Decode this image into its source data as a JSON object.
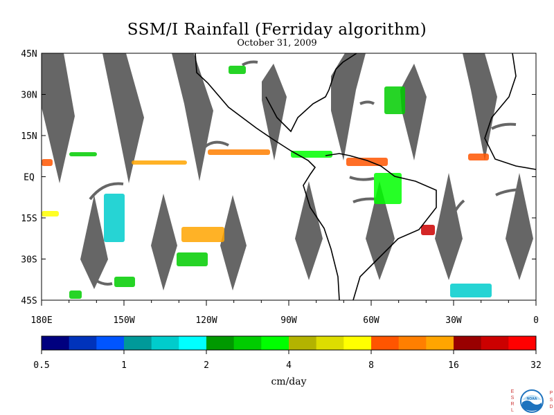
{
  "title": "SSM/I Rainfall (Ferriday algorithm)",
  "date": "October 31, 2009",
  "map": {
    "lat_labels": [
      "45N",
      "30N",
      "15N",
      "EQ",
      "15S",
      "30S",
      "45S"
    ],
    "lat_values": [
      45,
      30,
      15,
      0,
      -15,
      -30,
      -45
    ],
    "lon_labels": [
      "180E",
      "150W",
      "120W",
      "90W",
      "60W",
      "30W",
      "0"
    ],
    "lon_values": [
      -180,
      -150,
      -120,
      -90,
      -60,
      -30,
      0
    ],
    "lon_range": [
      -180,
      0
    ],
    "lat_range": [
      -45,
      45
    ],
    "swath_gap_color": "#666666",
    "land_outline_color": "#000000"
  },
  "colorbar": {
    "units": "cm/day",
    "tick_labels": [
      "0.5",
      "1",
      "2",
      "4",
      "8",
      "16",
      "32"
    ],
    "colors": [
      "#00007f",
      "#0033bb",
      "#0055ff",
      "#009999",
      "#00cccc",
      "#00ffff",
      "#009900",
      "#00cc00",
      "#00ff00",
      "#b3b300",
      "#dddd00",
      "#ffff00",
      "#ff5500",
      "#ff7f00",
      "#ffa500",
      "#990000",
      "#cc0000",
      "#ff0000"
    ]
  },
  "logo": {
    "left_letters": "ESRL",
    "right_letters": "PSD",
    "center_text": "NOAA",
    "ring_color": "#1e73be"
  }
}
